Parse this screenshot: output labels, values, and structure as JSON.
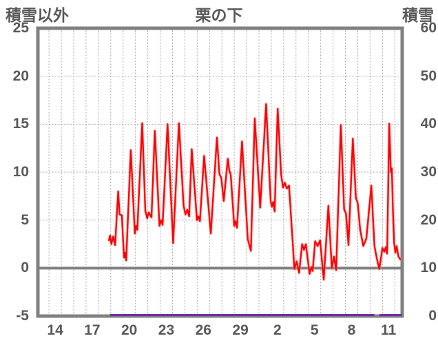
{
  "header": {
    "left_axis_title": "積雪以外",
    "chart_title": "栗の下",
    "right_axis_title": "積雪"
  },
  "chart_data": {
    "type": "line",
    "title": "栗の下",
    "x_axis": {
      "domain": [
        13.1,
        42.6
      ],
      "gridline_step": 1,
      "tick_labels": [
        "14",
        "17",
        "20",
        "23",
        "26",
        "29",
        "2",
        "5",
        "8",
        "11"
      ],
      "tick_days": [
        14.5,
        17.5,
        20.5,
        23.5,
        26.5,
        29.5,
        32.5,
        35.5,
        38.5,
        41.5
      ]
    },
    "left_axis": {
      "title": "積雪以外",
      "min": -5,
      "max": 25,
      "ticks": [
        25,
        20,
        15,
        10,
        5,
        0,
        -5
      ]
    },
    "right_axis": {
      "title": "積雪",
      "min": 0,
      "max": 60,
      "ticks": [
        60,
        50,
        40,
        30,
        20,
        10,
        0
      ]
    },
    "gridlines_left_values": [
      20,
      15,
      10,
      5
    ],
    "zero_line_value": 0,
    "colors": {
      "red_series": "#ff0000",
      "red_halo": "#ff9999",
      "purple_series": "#7030a0",
      "axis_text": "#595959",
      "border": "#808080",
      "gridline": "#a6a6a6"
    },
    "series": [
      {
        "name": "積雪以外",
        "axis": "left",
        "color": "#ff0000",
        "points": [
          [
            18.85,
            2.9
          ],
          [
            18.95,
            3.4
          ],
          [
            19.05,
            2.5
          ],
          [
            19.2,
            3.3
          ],
          [
            19.35,
            2.4
          ],
          [
            19.6,
            8.0
          ],
          [
            19.72,
            5.6
          ],
          [
            19.9,
            5.5
          ],
          [
            20.0,
            3.0
          ],
          [
            20.08,
            1.1
          ],
          [
            20.16,
            1.6
          ],
          [
            20.25,
            0.8
          ],
          [
            20.62,
            12.3
          ],
          [
            20.95,
            3.6
          ],
          [
            21.05,
            4.4
          ],
          [
            21.15,
            4.0
          ],
          [
            21.55,
            15.1
          ],
          [
            21.8,
            6.0
          ],
          [
            21.95,
            5.2
          ],
          [
            22.08,
            5.8
          ],
          [
            22.3,
            5.3
          ],
          [
            22.57,
            14.3
          ],
          [
            22.95,
            4.4
          ],
          [
            23.08,
            5.0
          ],
          [
            23.2,
            4.5
          ],
          [
            23.6,
            15.0
          ],
          [
            24.05,
            2.6
          ],
          [
            24.52,
            15.1
          ],
          [
            24.9,
            6.5
          ],
          [
            25.05,
            5.6
          ],
          [
            25.2,
            6.1
          ],
          [
            25.35,
            5.4
          ],
          [
            25.56,
            12.4
          ],
          [
            25.98,
            5.0
          ],
          [
            26.1,
            5.4
          ],
          [
            26.22,
            4.9
          ],
          [
            26.56,
            11.7
          ],
          [
            27.1,
            3.6
          ],
          [
            27.6,
            13.6
          ],
          [
            27.8,
            9.8
          ],
          [
            27.95,
            9.4
          ],
          [
            28.15,
            7.0
          ],
          [
            28.48,
            11.4
          ],
          [
            28.6,
            10.2
          ],
          [
            28.72,
            9.7
          ],
          [
            29.0,
            4.4
          ],
          [
            29.1,
            4.9
          ],
          [
            29.22,
            4.2
          ],
          [
            29.63,
            13.2
          ],
          [
            30.1,
            3.0
          ],
          [
            30.35,
            1.8
          ],
          [
            30.66,
            15.6
          ],
          [
            31.1,
            6.3
          ],
          [
            31.58,
            17.1
          ],
          [
            31.95,
            7.0
          ],
          [
            32.05,
            6.4
          ],
          [
            32.15,
            6.9
          ],
          [
            32.27,
            5.9
          ],
          [
            32.52,
            16.6
          ],
          [
            32.8,
            9.7
          ],
          [
            32.95,
            8.4
          ],
          [
            33.1,
            8.9
          ],
          [
            33.25,
            8.3
          ],
          [
            33.44,
            8.6
          ],
          [
            33.87,
            -0.1
          ],
          [
            34.05,
            0.7
          ],
          [
            34.25,
            -0.5
          ],
          [
            34.5,
            2.5
          ],
          [
            34.65,
            1.9
          ],
          [
            34.8,
            2.5
          ],
          [
            35.1,
            -0.6
          ],
          [
            35.25,
            0.1
          ],
          [
            35.35,
            -0.3
          ],
          [
            35.55,
            2.8
          ],
          [
            35.75,
            2.3
          ],
          [
            35.95,
            2.9
          ],
          [
            36.25,
            -1.2
          ],
          [
            36.62,
            6.5
          ],
          [
            36.9,
            0.0
          ],
          [
            37.08,
            1.2
          ],
          [
            37.25,
            -0.2
          ],
          [
            37.63,
            14.9
          ],
          [
            37.9,
            6.1
          ],
          [
            38.05,
            5.7
          ],
          [
            38.25,
            2.4
          ],
          [
            38.6,
            13.5
          ],
          [
            38.85,
            7.3
          ],
          [
            39.0,
            6.8
          ],
          [
            39.2,
            4.0
          ],
          [
            39.45,
            2.3
          ],
          [
            39.7,
            3.1
          ],
          [
            40.1,
            8.6
          ],
          [
            40.35,
            2.3
          ],
          [
            40.55,
            1.0
          ],
          [
            40.75,
            -0.1
          ],
          [
            41.0,
            2.1
          ],
          [
            41.15,
            1.7
          ],
          [
            41.28,
            2.2
          ],
          [
            41.38,
            1.5
          ],
          [
            41.55,
            15.05
          ],
          [
            41.68,
            10.0
          ],
          [
            41.76,
            10.4
          ],
          [
            41.85,
            5.9
          ],
          [
            41.95,
            2.6
          ],
          [
            42.05,
            1.6
          ],
          [
            42.15,
            2.3
          ],
          [
            42.3,
            1.2
          ],
          [
            42.45,
            0.9
          ]
        ]
      },
      {
        "name": "積雪",
        "axis": "right",
        "color": "#7030a0",
        "segments": [
          [
            [
              18.95,
              0
            ],
            [
              40.35,
              0
            ]
          ],
          [
            [
              40.75,
              0
            ],
            [
              42.58,
              0
            ]
          ]
        ]
      }
    ]
  }
}
